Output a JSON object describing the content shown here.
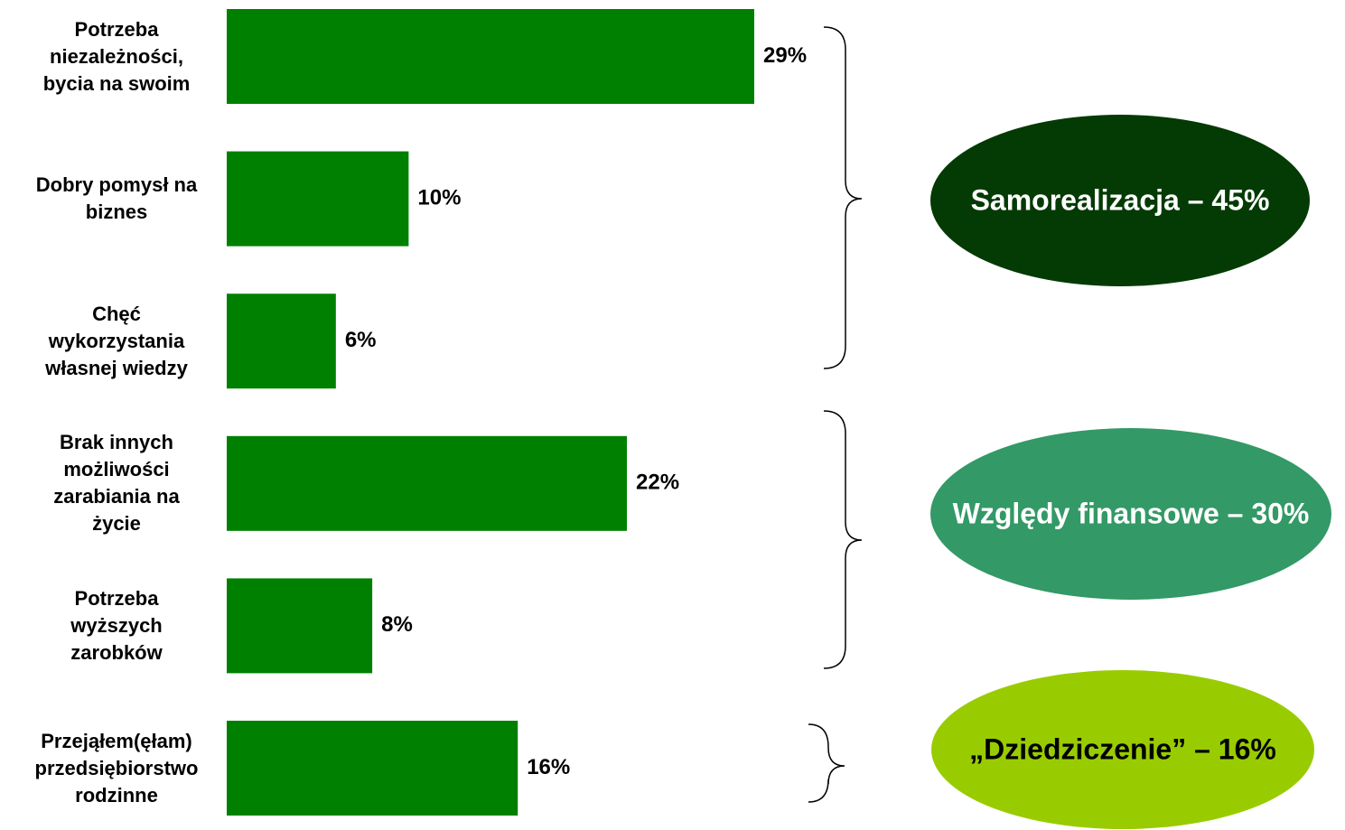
{
  "chart_data": {
    "type": "bar",
    "orientation": "horizontal",
    "categories": [
      "Potrzeba\nniezależności,\nbycia na swoim",
      "Dobry pomysł na\nbiznes",
      "Chęć\nwykorzystania\nwłasnej wiedzy",
      "Brak innych\nmożliwości\nzarabiania na\nżycie",
      "Potrzeba\nwyższych\nzarobków",
      "Przejąłem(ęłam)\nprzedsiębiorstwo\nrodzinne"
    ],
    "values": [
      29,
      10,
      6,
      22,
      8,
      16
    ],
    "value_labels": [
      "29%",
      "10%",
      "6%",
      "22%",
      "8%",
      "16%"
    ],
    "color": "#008000",
    "annotations": [
      {
        "label": "Samorealizacja – 45%",
        "color": "#043a04",
        "text_color": "#ffffff"
      },
      {
        "label": "Względy finansowe – 30%",
        "color": "#339966",
        "text_color": "#ffffff"
      },
      {
        "label": "„Dziedziczenie” – 16%",
        "color": "#99cc00",
        "text_color": "#000000"
      }
    ]
  }
}
